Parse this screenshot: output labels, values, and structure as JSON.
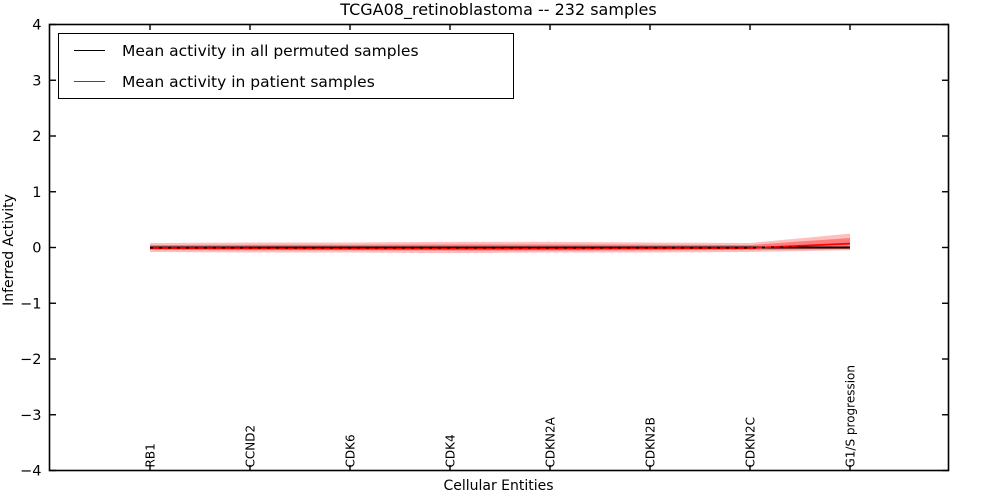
{
  "title": "TCGA08_retinoblastoma -- 232 samples",
  "legend": {
    "position": "upper left",
    "items": [
      {
        "label": "Mean activity in all permuted samples",
        "color": "#000000"
      },
      {
        "label": "Mean activity in patient samples",
        "color": "#ff0000"
      }
    ]
  },
  "chart_data": {
    "type": "line",
    "title": "TCGA08_retinoblastoma -- 232 samples",
    "xlabel": "Cellular Entities",
    "ylabel": "Inferred Activity",
    "ylim": [
      -4,
      4
    ],
    "yticks": [
      -4,
      -3,
      -2,
      -1,
      0,
      1,
      2,
      3,
      4
    ],
    "grid": false,
    "legend_position": "upper left",
    "categories": [
      "RB1",
      "CCND2",
      "CDK6",
      "CDK4",
      "CDKN2A",
      "CDKN2B",
      "CDKN2C",
      "G1/S progression"
    ],
    "series": [
      {
        "name": "Mean activity in all permuted samples",
        "color": "#000000",
        "style": "dashed-over-solid",
        "values": [
          0,
          0,
          0,
          0,
          0,
          0,
          0,
          0
        ]
      },
      {
        "name": "Mean activity in patient samples",
        "color": "#ff0000",
        "style": "solid",
        "values": [
          -0.01,
          -0.015,
          -0.02,
          -0.02,
          -0.02,
          -0.015,
          -0.01,
          0.07
        ]
      }
    ],
    "bands": [
      {
        "name": "patient-spread-outer",
        "fill": "rgba(255,0,0,0.25)",
        "upper": [
          0.08,
          0.09,
          0.09,
          0.1,
          0.1,
          0.09,
          0.08,
          0.25
        ],
        "lower": [
          -0.08,
          -0.09,
          -0.09,
          -0.1,
          -0.09,
          -0.09,
          -0.08,
          -0.05
        ]
      },
      {
        "name": "patient-spread-inner",
        "fill": "rgba(255,0,0,0.35)",
        "upper": [
          0.045,
          0.05,
          0.05,
          0.055,
          0.055,
          0.05,
          0.045,
          0.17
        ],
        "lower": [
          -0.045,
          -0.05,
          -0.05,
          -0.055,
          -0.055,
          -0.05,
          -0.045,
          -0.03
        ]
      }
    ]
  }
}
